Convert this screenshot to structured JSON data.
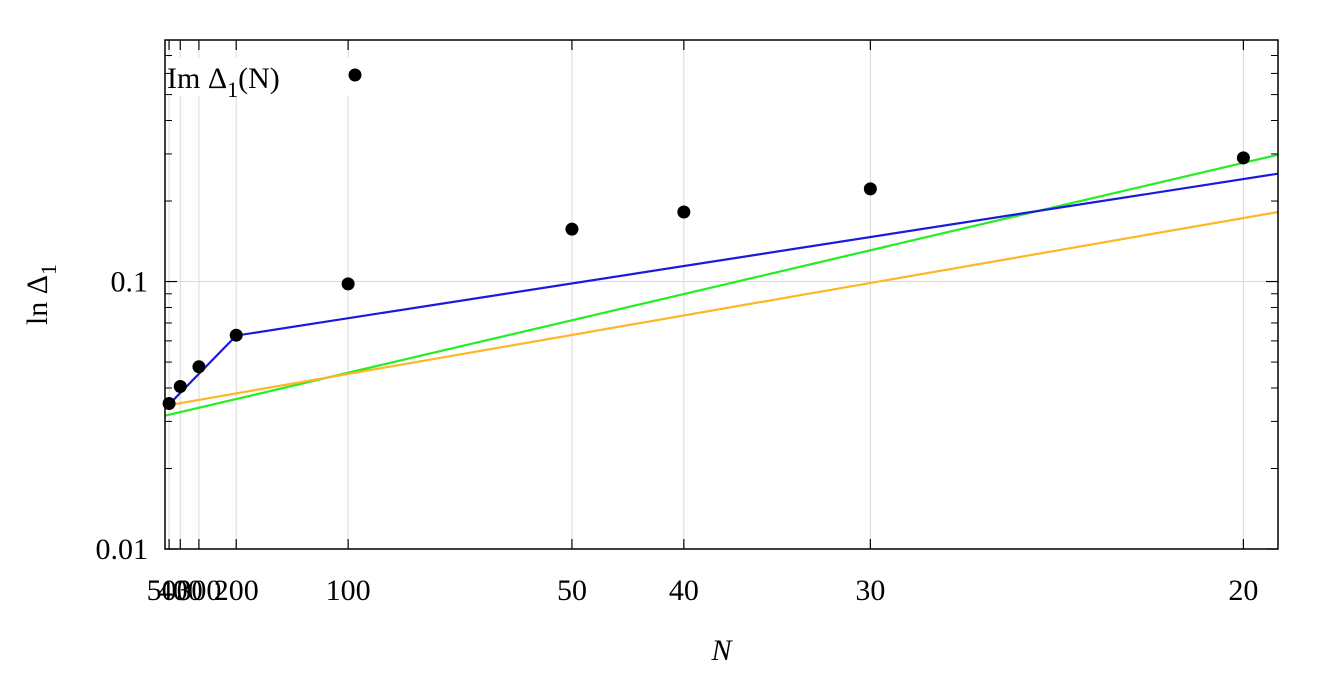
{
  "chart_data": {
    "type": "scatter",
    "title": "",
    "xlabel": "N",
    "ylabel_main": "ln Δ",
    "ylabel_sub": "1",
    "x_scale": "reciprocal",
    "x_reversed": true,
    "y_scale": "log",
    "xlim": [
      550,
      19.4
    ],
    "ylim": [
      0.01,
      0.8
    ],
    "x_ticks": [
      500,
      400,
      300,
      200,
      100,
      50,
      40,
      30,
      20
    ],
    "x_tick_labels": [
      "500",
      "400",
      "300",
      "200",
      "100",
      "50",
      "40",
      "30",
      "20"
    ],
    "y_ticks": [
      0.01,
      0.1
    ],
    "y_tick_labels": [
      "0.01",
      "0.1"
    ],
    "grid": true,
    "legend_position": "top-left",
    "legend": {
      "main": "Im Δ",
      "sub": "1",
      "suffix": "(N)"
    },
    "series": [
      {
        "name": "Im Δ1(N)",
        "kind": "points",
        "color": "#000000",
        "points": [
          {
            "x": 500,
            "y": 0.035
          },
          {
            "x": 400,
            "y": 0.0405
          },
          {
            "x": 300,
            "y": 0.048
          },
          {
            "x": 200,
            "y": 0.063
          },
          {
            "x": 100,
            "y": 0.098
          },
          {
            "x": 50,
            "y": 0.157
          },
          {
            "x": 40,
            "y": 0.182
          },
          {
            "x": 30,
            "y": 0.222
          },
          {
            "x": 20,
            "y": 0.29
          }
        ]
      },
      {
        "kind": "line",
        "color": "#22ee22",
        "points": [
          {
            "x": 550,
            "y": 0.0315
          },
          {
            "x": 19.4,
            "y": 0.298
          }
        ]
      },
      {
        "kind": "line",
        "color": "#1a1adc",
        "points": [
          {
            "x": 550,
            "y": 0.0335
          },
          {
            "x": 200,
            "y": 0.0628
          },
          {
            "x": 19.4,
            "y": 0.253
          }
        ]
      },
      {
        "kind": "line",
        "color": "#ffb525",
        "points": [
          {
            "x": 550,
            "y": 0.0343
          },
          {
            "x": 19.4,
            "y": 0.182
          }
        ]
      }
    ]
  }
}
